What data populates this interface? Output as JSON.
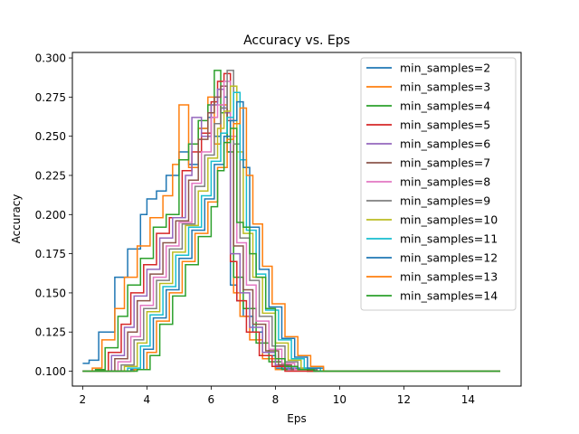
{
  "chart_data": {
    "type": "line",
    "title": "Accuracy vs. Eps",
    "xlabel": "Eps",
    "ylabel": "Accuracy",
    "xlim": [
      1.68,
      15.65
    ],
    "ylim": [
      0.0905,
      0.3035
    ],
    "xticks": [
      2,
      4,
      6,
      8,
      10,
      12,
      14
    ],
    "yticks": [
      0.1,
      0.125,
      0.15,
      0.175,
      0.2,
      0.225,
      0.25,
      0.275,
      0.3
    ],
    "ytick_labels": [
      "0.100",
      "0.125",
      "0.150",
      "0.175",
      "0.200",
      "0.225",
      "0.250",
      "0.275",
      "0.300"
    ],
    "grid": false,
    "legend_position": "upper right",
    "series": [
      {
        "name": "min_samples=2",
        "color": "#1f77b4",
        "x": [
          2.0,
          2.2,
          2.5,
          3.0,
          3.4,
          3.8,
          4.0,
          4.3,
          4.6,
          5.0,
          5.3,
          5.6,
          5.9,
          6.1,
          6.3,
          6.4,
          6.5,
          6.6,
          6.8,
          7.0,
          7.3,
          7.6,
          8.0,
          9.0,
          15.0
        ],
        "y": [
          0.105,
          0.107,
          0.125,
          0.16,
          0.178,
          0.2,
          0.21,
          0.215,
          0.225,
          0.24,
          0.232,
          0.255,
          0.262,
          0.25,
          0.268,
          0.275,
          0.24,
          0.155,
          0.145,
          0.135,
          0.125,
          0.11,
          0.102,
          0.1,
          0.1
        ]
      },
      {
        "name": "min_samples=3",
        "color": "#ff7f0e",
        "x": [
          2.0,
          2.3,
          2.6,
          3.0,
          3.3,
          3.7,
          4.1,
          4.5,
          4.8,
          5.0,
          5.3,
          5.6,
          5.9,
          6.1,
          6.3,
          6.5,
          6.7,
          6.9,
          7.2,
          7.6,
          8.0,
          9.0,
          15.0
        ],
        "y": [
          0.1,
          0.102,
          0.12,
          0.14,
          0.16,
          0.18,
          0.198,
          0.212,
          0.232,
          0.27,
          0.23,
          0.255,
          0.275,
          0.245,
          0.27,
          0.25,
          0.15,
          0.135,
          0.12,
          0.108,
          0.101,
          0.1,
          0.1
        ]
      },
      {
        "name": "min_samples=4",
        "color": "#2ca02c",
        "x": [
          2.0,
          2.4,
          2.7,
          3.1,
          3.4,
          3.8,
          4.2,
          4.6,
          5.0,
          5.3,
          5.6,
          5.9,
          6.1,
          6.3,
          6.5,
          6.7,
          7.0,
          7.4,
          7.8,
          8.2,
          9.0,
          15.0
        ],
        "y": [
          0.1,
          0.101,
          0.115,
          0.135,
          0.155,
          0.172,
          0.192,
          0.2,
          0.235,
          0.245,
          0.26,
          0.27,
          0.292,
          0.265,
          0.24,
          0.16,
          0.14,
          0.118,
          0.106,
          0.101,
          0.1,
          0.1
        ]
      },
      {
        "name": "min_samples=5",
        "color": "#d62728",
        "x": [
          2.0,
          2.5,
          2.8,
          3.2,
          3.5,
          3.9,
          4.3,
          4.7,
          5.1,
          5.4,
          5.7,
          6.0,
          6.2,
          6.4,
          6.6,
          6.8,
          7.1,
          7.5,
          7.9,
          8.3,
          9.0,
          15.0
        ],
        "y": [
          0.1,
          0.1,
          0.112,
          0.13,
          0.15,
          0.168,
          0.188,
          0.198,
          0.228,
          0.24,
          0.252,
          0.272,
          0.285,
          0.29,
          0.17,
          0.145,
          0.125,
          0.11,
          0.103,
          0.1,
          0.1,
          0.1
        ]
      },
      {
        "name": "min_samples=6",
        "color": "#9467bd",
        "x": [
          2.0,
          2.6,
          2.9,
          3.3,
          3.6,
          4.0,
          4.4,
          4.8,
          5.2,
          5.4,
          5.7,
          6.0,
          6.2,
          6.4,
          6.6,
          6.9,
          7.2,
          7.6,
          8.0,
          8.4,
          9.2,
          15.0
        ],
        "y": [
          0.1,
          0.1,
          0.11,
          0.128,
          0.148,
          0.165,
          0.185,
          0.198,
          0.225,
          0.262,
          0.25,
          0.27,
          0.28,
          0.265,
          0.175,
          0.15,
          0.128,
          0.112,
          0.104,
          0.101,
          0.1,
          0.1
        ]
      },
      {
        "name": "min_samples=7",
        "color": "#8c564b",
        "x": [
          2.0,
          2.7,
          3.0,
          3.4,
          3.7,
          4.1,
          4.5,
          4.9,
          5.3,
          5.6,
          5.9,
          6.1,
          6.3,
          6.5,
          6.7,
          7.0,
          7.3,
          7.7,
          8.1,
          8.5,
          9.2,
          15.0
        ],
        "y": [
          0.1,
          0.1,
          0.108,
          0.125,
          0.145,
          0.162,
          0.182,
          0.196,
          0.222,
          0.248,
          0.265,
          0.275,
          0.282,
          0.26,
          0.18,
          0.152,
          0.13,
          0.113,
          0.104,
          0.101,
          0.1,
          0.1
        ]
      },
      {
        "name": "min_samples=8",
        "color": "#e377c2",
        "x": [
          2.0,
          2.8,
          3.1,
          3.5,
          3.8,
          4.2,
          4.6,
          5.0,
          5.4,
          5.7,
          6.0,
          6.2,
          6.4,
          6.6,
          6.8,
          7.1,
          7.4,
          7.8,
          8.2,
          8.6,
          9.3,
          15.0
        ],
        "y": [
          0.1,
          0.1,
          0.106,
          0.122,
          0.142,
          0.16,
          0.18,
          0.195,
          0.22,
          0.24,
          0.262,
          0.27,
          0.285,
          0.25,
          0.182,
          0.155,
          0.132,
          0.114,
          0.105,
          0.101,
          0.1,
          0.1
        ]
      },
      {
        "name": "min_samples=9",
        "color": "#7f7f7f",
        "x": [
          2.0,
          2.9,
          3.2,
          3.6,
          3.9,
          4.3,
          4.7,
          5.1,
          5.5,
          5.8,
          6.1,
          6.3,
          6.5,
          6.7,
          6.9,
          7.2,
          7.5,
          7.9,
          8.3,
          8.7,
          9.3,
          15.0
        ],
        "y": [
          0.1,
          0.1,
          0.104,
          0.12,
          0.14,
          0.158,
          0.178,
          0.194,
          0.218,
          0.238,
          0.258,
          0.268,
          0.292,
          0.245,
          0.185,
          0.158,
          0.135,
          0.116,
          0.106,
          0.101,
          0.1,
          0.1
        ]
      },
      {
        "name": "min_samples=10",
        "color": "#bcbd22",
        "x": [
          2.0,
          3.0,
          3.3,
          3.7,
          4.0,
          4.4,
          4.8,
          5.2,
          5.6,
          5.9,
          6.2,
          6.4,
          6.6,
          6.8,
          7.0,
          7.3,
          7.6,
          8.0,
          8.4,
          8.8,
          9.4,
          15.0
        ],
        "y": [
          0.1,
          0.1,
          0.103,
          0.118,
          0.138,
          0.156,
          0.176,
          0.193,
          0.215,
          0.236,
          0.255,
          0.266,
          0.282,
          0.24,
          0.188,
          0.16,
          0.137,
          0.118,
          0.107,
          0.102,
          0.1,
          0.1
        ]
      },
      {
        "name": "min_samples=11",
        "color": "#17becf",
        "x": [
          2.0,
          3.1,
          3.4,
          3.8,
          4.1,
          4.5,
          4.9,
          5.3,
          5.7,
          6.0,
          6.3,
          6.5,
          6.7,
          6.9,
          7.1,
          7.4,
          7.7,
          8.1,
          8.5,
          8.9,
          9.4,
          15.0
        ],
        "y": [
          0.1,
          0.1,
          0.102,
          0.116,
          0.136,
          0.154,
          0.174,
          0.192,
          0.212,
          0.234,
          0.252,
          0.262,
          0.278,
          0.235,
          0.19,
          0.162,
          0.139,
          0.12,
          0.108,
          0.102,
          0.1,
          0.1
        ]
      },
      {
        "name": "min_samples=12",
        "color": "#1f77b4",
        "x": [
          2.0,
          3.2,
          3.5,
          3.9,
          4.2,
          4.6,
          5.0,
          5.4,
          5.8,
          6.1,
          6.4,
          6.6,
          6.8,
          7.0,
          7.2,
          7.5,
          7.8,
          8.2,
          8.6,
          9.0,
          9.5,
          15.0
        ],
        "y": [
          0.1,
          0.1,
          0.101,
          0.114,
          0.134,
          0.152,
          0.172,
          0.19,
          0.21,
          0.232,
          0.25,
          0.26,
          0.272,
          0.23,
          0.192,
          0.165,
          0.141,
          0.121,
          0.109,
          0.102,
          0.1,
          0.1
        ]
      },
      {
        "name": "min_samples=13",
        "color": "#ff7f0e",
        "x": [
          2.0,
          3.3,
          3.6,
          4.0,
          4.3,
          4.7,
          5.1,
          5.5,
          5.9,
          6.2,
          6.5,
          6.7,
          6.9,
          7.1,
          7.3,
          7.6,
          7.9,
          8.3,
          8.7,
          9.1,
          9.5,
          15.0
        ],
        "y": [
          0.1,
          0.1,
          0.101,
          0.112,
          0.132,
          0.15,
          0.17,
          0.188,
          0.208,
          0.23,
          0.248,
          0.258,
          0.268,
          0.225,
          0.194,
          0.167,
          0.143,
          0.122,
          0.11,
          0.103,
          0.1,
          0.1
        ]
      },
      {
        "name": "min_samples=14",
        "color": "#2ca02c",
        "x": [
          2.0,
          3.4,
          3.7,
          4.1,
          4.4,
          4.8,
          5.2,
          5.6,
          6.0,
          6.2,
          6.4,
          6.6,
          6.8,
          7.0,
          7.2,
          7.4,
          7.7,
          8.0,
          8.3,
          8.7,
          9.2,
          15.0
        ],
        "y": [
          0.1,
          0.1,
          0.101,
          0.11,
          0.13,
          0.148,
          0.168,
          0.186,
          0.205,
          0.228,
          0.246,
          0.255,
          0.195,
          0.192,
          0.175,
          0.16,
          0.14,
          0.108,
          0.103,
          0.101,
          0.1,
          0.1
        ]
      }
    ]
  }
}
